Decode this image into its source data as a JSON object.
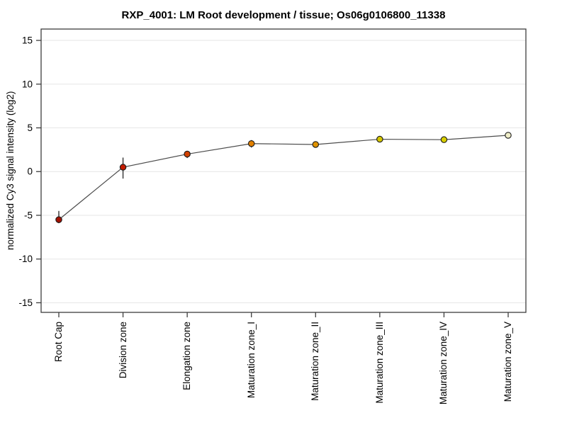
{
  "chart_data": {
    "type": "line",
    "title": "RXP_4001: LM Root development / tissue; Os06g0106800_11338",
    "ylabel": "normalized Cy3 signal intensity (log2)",
    "xlabel": "",
    "ylim": [
      -16.1,
      16.3
    ],
    "yticks": [
      15,
      10,
      5,
      0,
      -5,
      -10,
      -15
    ],
    "grid": true,
    "legend": "none",
    "categories": [
      "Root Cap",
      "Division zone",
      "Elongation zone",
      "Maturation zone_I",
      "Maturation zone_II",
      "Maturation zone_III",
      "Maturation zone_IV",
      "Maturation zone_V"
    ],
    "series": [
      {
        "name": "normalized Cy3 signal intensity",
        "values": [
          -5.5,
          0.5,
          2.0,
          3.2,
          3.1,
          3.7,
          3.65,
          4.15
        ],
        "error_high": [
          -4.5,
          1.6,
          2.35,
          3.6,
          3.35,
          3.95,
          3.9,
          4.3
        ],
        "error_low": [
          -5.9,
          -0.8,
          1.55,
          2.75,
          2.9,
          3.45,
          3.4,
          4.0
        ]
      }
    ],
    "point_colors": [
      "#a31000",
      "#c41c00",
      "#d14000",
      "#e28000",
      "#de9200",
      "#d4c600",
      "#d8ce00",
      "#efedc8"
    ],
    "line_color": "#4d4d4d",
    "error_bar_color": "#333333",
    "marker_outline": "#1a1a1a",
    "grid_color": "#e6e6e6",
    "axis_color": "#3d3d3d",
    "background": "#ffffff"
  }
}
